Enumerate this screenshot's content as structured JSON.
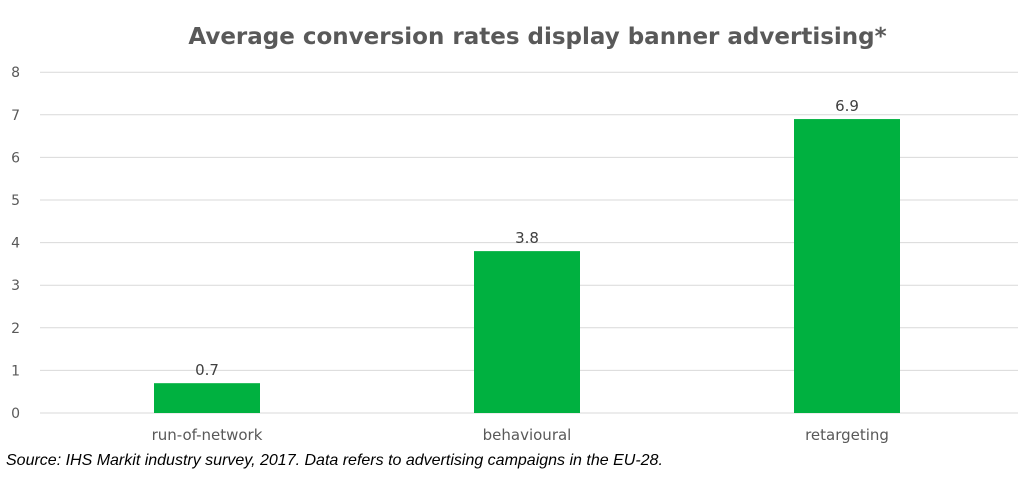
{
  "chart_data": {
    "type": "bar",
    "title": "Average conversion rates display banner advertising*",
    "categories": [
      "run-of-network",
      "behavioural",
      "retargeting"
    ],
    "values": [
      0.7,
      3.8,
      6.9
    ],
    "data_labels": [
      "0.7",
      "3.8",
      "6.9"
    ],
    "xlabel": "",
    "ylabel": "",
    "ylim": [
      0,
      8
    ],
    "yticks": [
      "0",
      "1",
      "2",
      "3",
      "4",
      "5",
      "6",
      "7",
      "8"
    ],
    "grid": true,
    "legend": "none",
    "bar_color": "#00B140",
    "gridline_color": "#D9D9D9"
  },
  "footnote": "Source: IHS Markit industry survey, 2017. Data refers to advertising campaigns in the EU-28."
}
